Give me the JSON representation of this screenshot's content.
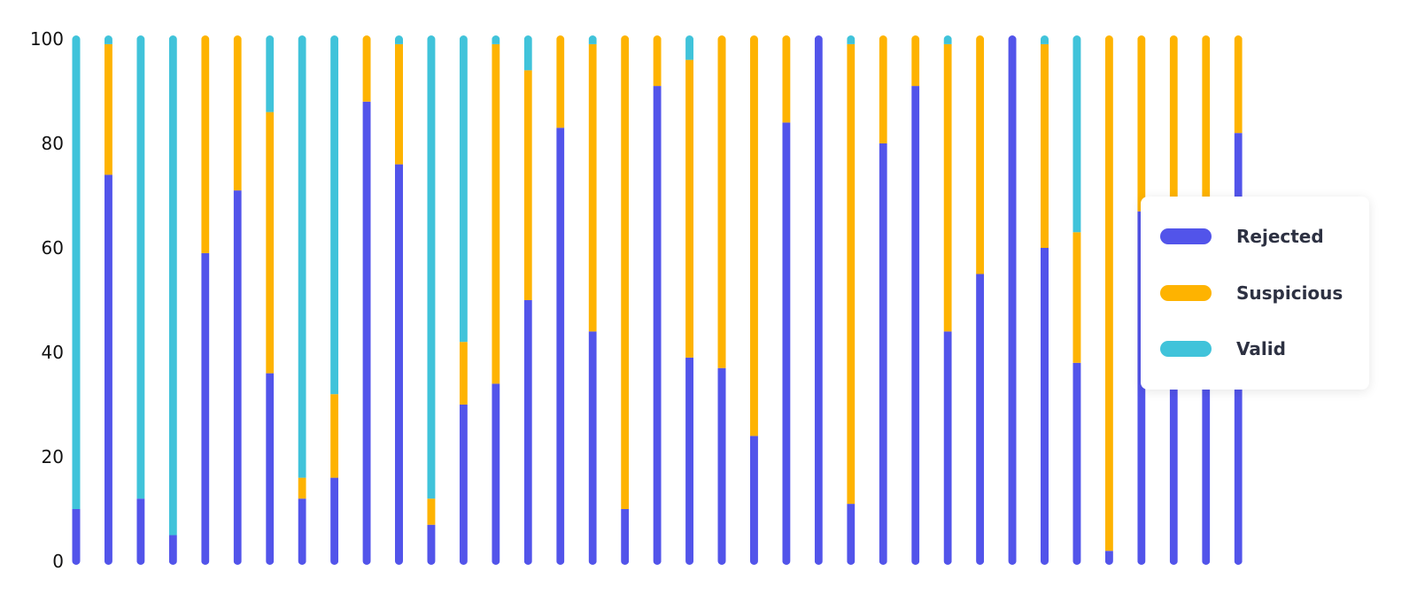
{
  "colors": {
    "rejected": "#5254ea",
    "suspicious": "#feb301",
    "valid": "#40c3da"
  },
  "legend": {
    "items": [
      {
        "label": "Rejected",
        "color": "#5254ea"
      },
      {
        "label": "Suspicious",
        "color": "#feb301"
      },
      {
        "label": "Valid",
        "color": "#40c3da"
      }
    ],
    "position": "right"
  },
  "chart_data": {
    "type": "bar",
    "stacked": true,
    "ylim": [
      0,
      100
    ],
    "yticks": [
      "0",
      "20",
      "40",
      "60",
      "80",
      "100"
    ],
    "title": "",
    "xlabel": "",
    "ylabel": "",
    "grid": false,
    "series": [
      {
        "name": "Rejected",
        "values": [
          10,
          74,
          12,
          5,
          59,
          71,
          36,
          12,
          16,
          88,
          76,
          7,
          30,
          34,
          50,
          83,
          44,
          10,
          91,
          39,
          37,
          24,
          84,
          100,
          11,
          80,
          91,
          44,
          55,
          100,
          60,
          38,
          2,
          67,
          67,
          67,
          82
        ]
      },
      {
        "name": "Suspicious",
        "values": [
          0,
          25,
          0,
          0,
          41,
          29,
          50,
          4,
          16,
          12,
          23,
          5,
          12,
          65,
          44,
          17,
          55,
          90,
          9,
          57,
          63,
          76,
          16,
          0,
          88,
          20,
          9,
          55,
          45,
          0,
          39,
          25,
          98,
          33,
          33,
          33,
          18
        ]
      },
      {
        "name": "Valid",
        "values": [
          90,
          1,
          88,
          95,
          0,
          0,
          14,
          84,
          68,
          0,
          1,
          88,
          58,
          1,
          6,
          0,
          1,
          0,
          0,
          4,
          0,
          0,
          0,
          0,
          1,
          0,
          0,
          1,
          0,
          0,
          1,
          37,
          0,
          0,
          0,
          0,
          0
        ]
      }
    ]
  }
}
